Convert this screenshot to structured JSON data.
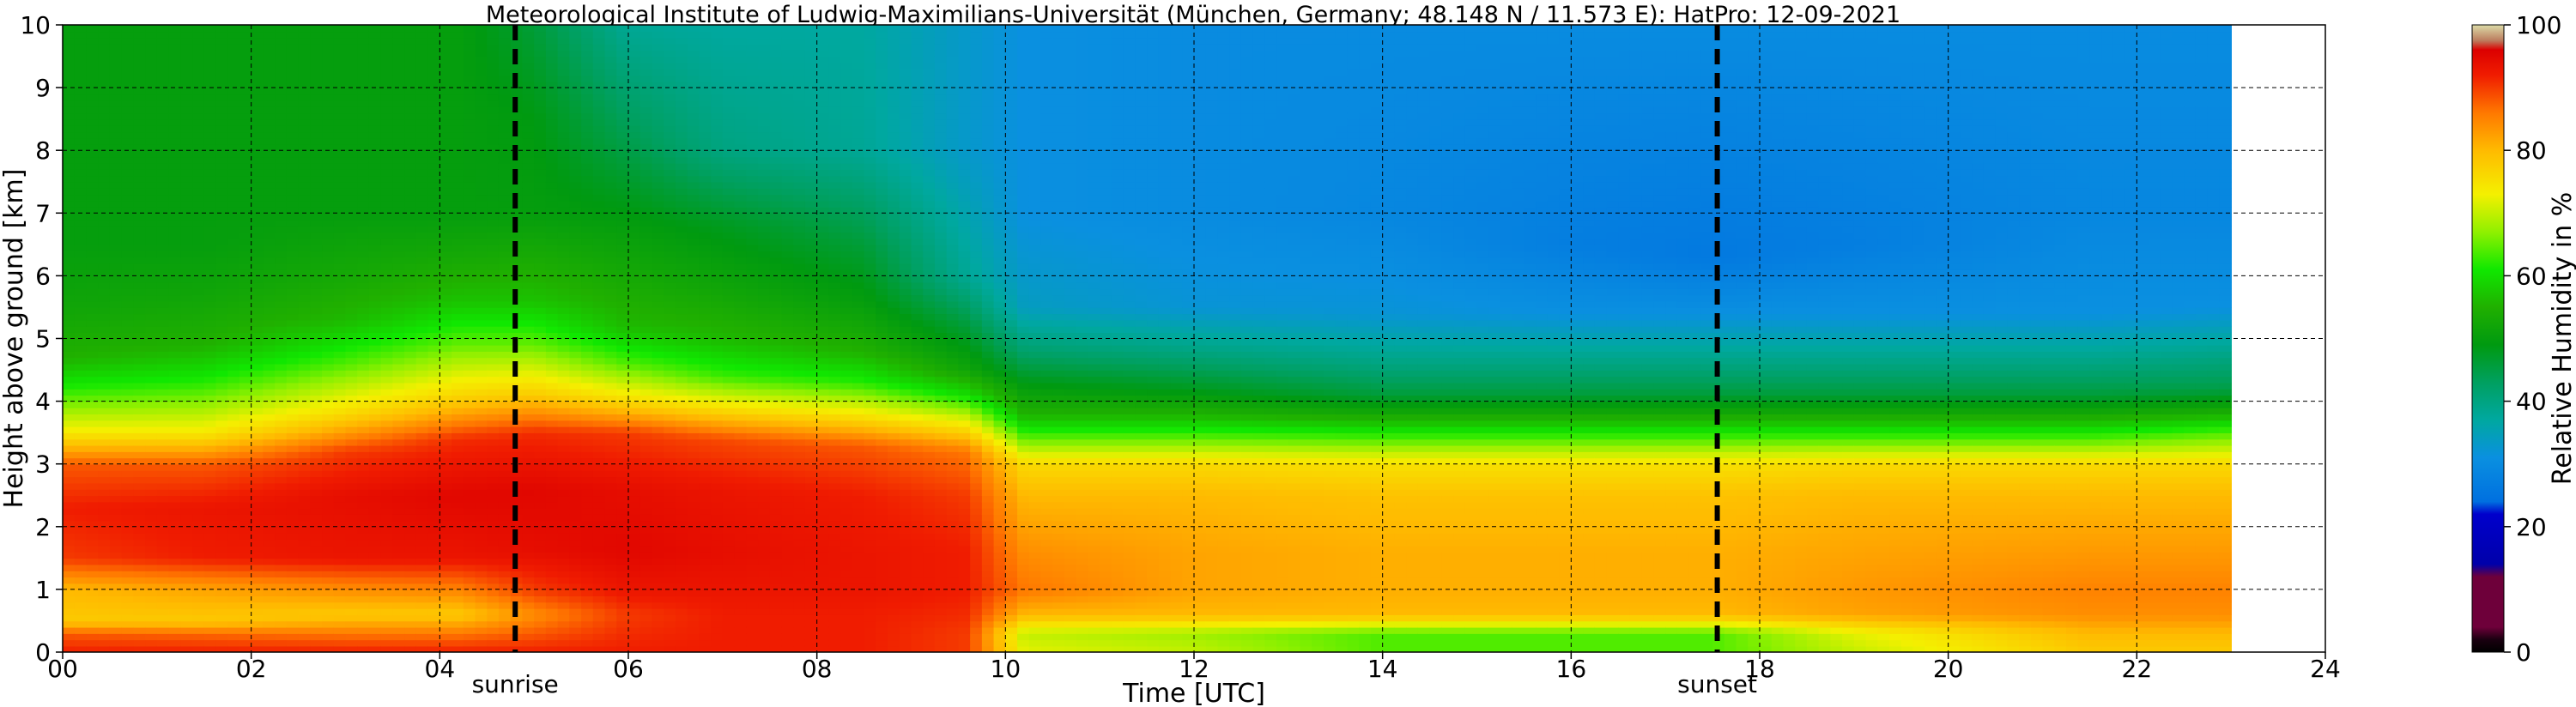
{
  "chart_data": {
    "type": "heatmap",
    "title": "Meteorological Institute of Ludwig-Maximilians-Universität (München, Germany; 48.148 N / 11.573 E):    HatPro: 12-09-2021",
    "xlabel": "Time [UTC]",
    "ylabel": "Height above ground [km]",
    "xlim": [
      0,
      24
    ],
    "ylim": [
      0,
      10
    ],
    "x_ticks": [
      0,
      2,
      4,
      6,
      8,
      10,
      12,
      14,
      16,
      18,
      20,
      22,
      24
    ],
    "x_tick_labels": [
      "00",
      "02",
      "04",
      "06",
      "08",
      "10",
      "12",
      "14",
      "16",
      "18",
      "20",
      "22",
      "24"
    ],
    "y_ticks": [
      0,
      1,
      2,
      3,
      4,
      5,
      6,
      7,
      8,
      9,
      10
    ],
    "y_tick_labels": [
      "0",
      "1",
      "2",
      "3",
      "4",
      "5",
      "6",
      "7",
      "8",
      "9",
      "10"
    ],
    "grid": true,
    "data_x_end": 23.0,
    "annotations": [
      {
        "label": "sunrise",
        "x": 4.8
      },
      {
        "label": "sunset",
        "x": 17.55
      }
    ],
    "colorbar": {
      "label": "Relative Humidity in %",
      "ticks": [
        0,
        20,
        40,
        60,
        80,
        100
      ],
      "tick_labels": [
        "0",
        "20",
        "40",
        "60",
        "80",
        "100"
      ],
      "stops": [
        {
          "value": 0,
          "color": "#000000"
        },
        {
          "value": 2,
          "color": "#1a0010"
        },
        {
          "value": 4,
          "color": "#6e003a"
        },
        {
          "value": 12,
          "color": "#6e003a"
        },
        {
          "value": 14,
          "color": "#0000aa"
        },
        {
          "value": 22,
          "color": "#0000cc"
        },
        {
          "value": 24,
          "color": "#0070e0"
        },
        {
          "value": 31,
          "color": "#0a90e0"
        },
        {
          "value": 37,
          "color": "#00a8a0"
        },
        {
          "value": 43,
          "color": "#00a060"
        },
        {
          "value": 49,
          "color": "#009a10"
        },
        {
          "value": 55,
          "color": "#20b000"
        },
        {
          "value": 61,
          "color": "#10e800"
        },
        {
          "value": 67,
          "color": "#90f000"
        },
        {
          "value": 73,
          "color": "#f4f000"
        },
        {
          "value": 80,
          "color": "#ffba00"
        },
        {
          "value": 86,
          "color": "#ff7800"
        },
        {
          "value": 92,
          "color": "#f01c00"
        },
        {
          "value": 96,
          "color": "#dc0000"
        },
        {
          "value": 97.5,
          "color": "#bc7c5e"
        },
        {
          "value": 100,
          "color": "#dcdca8"
        }
      ]
    },
    "rh_profiles": [
      {
        "x": 0.0,
        "h": [
          0,
          0.3,
          0.5,
          1.0,
          1.5,
          2.3,
          3.0,
          3.5,
          4.2,
          4.7,
          5.5,
          6.5,
          8.0,
          10.0
        ],
        "rh": [
          92,
          88,
          78,
          80,
          90,
          92,
          88,
          74,
          62,
          55,
          52,
          50,
          50,
          50
        ]
      },
      {
        "x": 1.5,
        "h": [
          0,
          0.3,
          0.5,
          1.0,
          1.5,
          2.3,
          3.0,
          3.5,
          4.3,
          4.9,
          5.7,
          6.5,
          8.0,
          10.0
        ],
        "rh": [
          92,
          87,
          78,
          82,
          92,
          93,
          88,
          74,
          62,
          55,
          52,
          50,
          50,
          50
        ]
      },
      {
        "x": 3.0,
        "h": [
          0,
          0.3,
          0.6,
          1.0,
          1.5,
          2.5,
          3.2,
          3.8,
          4.6,
          5.3,
          6.0,
          7.0,
          8.0,
          10.0
        ],
        "rh": [
          92,
          86,
          78,
          84,
          93,
          94,
          90,
          76,
          64,
          56,
          53,
          50,
          50,
          50
        ]
      },
      {
        "x": 4.2,
        "h": [
          0,
          0.3,
          0.6,
          1.0,
          1.5,
          2.5,
          3.4,
          4.0,
          4.9,
          5.6,
          6.3,
          7.0,
          8.5,
          10.0
        ],
        "rh": [
          92,
          86,
          78,
          85,
          93,
          95,
          91,
          78,
          65,
          57,
          53,
          50,
          50,
          50
        ]
      },
      {
        "x": 5.0,
        "h": [
          0,
          0.3,
          0.6,
          1.0,
          1.6,
          2.6,
          3.5,
          4.1,
          4.9,
          5.6,
          6.4,
          7.0,
          8.5,
          10.0
        ],
        "rh": [
          92,
          88,
          84,
          90,
          94,
          95,
          91,
          78,
          65,
          57,
          53,
          50,
          49,
          46
        ]
      },
      {
        "x": 6.0,
        "h": [
          0,
          0.3,
          0.6,
          1.0,
          1.6,
          2.6,
          3.5,
          4.0,
          4.6,
          5.2,
          6.0,
          6.8,
          8.0,
          10.0
        ],
        "rh": [
          92,
          91,
          90,
          93,
          95,
          94,
          90,
          76,
          64,
          56,
          53,
          50,
          45,
          38
        ]
      },
      {
        "x": 7.0,
        "h": [
          0,
          0.3,
          0.6,
          1.0,
          1.6,
          2.6,
          3.4,
          3.9,
          4.4,
          5.0,
          5.8,
          6.8,
          8.0,
          10.0
        ],
        "rh": [
          92,
          92,
          92,
          93,
          94,
          93,
          89,
          75,
          63,
          56,
          52,
          48,
          40,
          37
        ]
      },
      {
        "x": 8.5,
        "h": [
          0,
          0.3,
          0.6,
          1.0,
          1.6,
          2.5,
          3.3,
          3.8,
          4.3,
          4.8,
          5.6,
          6.5,
          8.0,
          10.0
        ],
        "rh": [
          92,
          92,
          92,
          93,
          93,
          92,
          88,
          74,
          62,
          55,
          50,
          46,
          38,
          37
        ]
      },
      {
        "x": 9.6,
        "h": [
          0,
          0.3,
          0.6,
          1.0,
          1.6,
          2.5,
          3.2,
          3.7,
          4.1,
          4.5,
          5.2,
          6.0,
          8.0,
          10.0
        ],
        "rh": [
          90,
          90,
          91,
          92,
          92,
          90,
          86,
          72,
          60,
          52,
          46,
          38,
          33,
          33
        ]
      },
      {
        "x": 10.2,
        "h": [
          0,
          0.3,
          0.6,
          1.0,
          1.6,
          2.5,
          3.0,
          3.4,
          3.8,
          4.2,
          4.8,
          5.5,
          7.0,
          10.0
        ],
        "rh": [
          72,
          70,
          80,
          86,
          84,
          80,
          76,
          65,
          55,
          50,
          42,
          34,
          31,
          31
        ]
      },
      {
        "x": 12.0,
        "h": [
          0,
          0.3,
          0.6,
          1.0,
          1.6,
          2.5,
          3.0,
          3.4,
          3.8,
          4.2,
          4.8,
          5.5,
          7.0,
          10.0
        ],
        "rh": [
          70,
          68,
          80,
          82,
          82,
          80,
          76,
          65,
          55,
          48,
          40,
          32,
          30,
          30
        ]
      },
      {
        "x": 14.0,
        "h": [
          0,
          0.3,
          0.6,
          1.0,
          1.6,
          2.5,
          3.0,
          3.4,
          3.8,
          4.1,
          4.6,
          5.4,
          7.0,
          10.0
        ],
        "rh": [
          64,
          64,
          80,
          81,
          81,
          79,
          75,
          64,
          53,
          46,
          40,
          32,
          29,
          30
        ]
      },
      {
        "x": 16.0,
        "h": [
          0,
          0.3,
          0.6,
          1.0,
          1.6,
          2.5,
          3.0,
          3.4,
          3.8,
          4.1,
          4.6,
          5.4,
          6.5,
          10.0
        ],
        "rh": [
          64,
          64,
          80,
          81,
          81,
          79,
          75,
          64,
          53,
          46,
          40,
          31,
          27,
          30
        ]
      },
      {
        "x": 17.5,
        "h": [
          0,
          0.3,
          0.6,
          1.0,
          1.6,
          2.5,
          3.0,
          3.4,
          3.8,
          4.1,
          4.6,
          5.4,
          6.3,
          10.0
        ],
        "rh": [
          64,
          64,
          80,
          81,
          81,
          79,
          75,
          64,
          53,
          46,
          40,
          31,
          26,
          30
        ]
      },
      {
        "x": 19.0,
        "h": [
          0,
          0.3,
          0.6,
          1.0,
          1.6,
          2.5,
          3.0,
          3.4,
          3.8,
          4.1,
          4.6,
          5.4,
          6.5,
          10.0
        ],
        "rh": [
          70,
          72,
          82,
          83,
          82,
          80,
          76,
          64,
          53,
          46,
          40,
          31,
          27,
          30
        ]
      },
      {
        "x": 21.5,
        "h": [
          0,
          0.3,
          0.6,
          1.0,
          1.6,
          2.5,
          3.0,
          3.4,
          3.8,
          4.1,
          4.6,
          5.4,
          7.0,
          10.0
        ],
        "rh": [
          78,
          80,
          84,
          85,
          83,
          80,
          76,
          64,
          53,
          46,
          40,
          31,
          29,
          30
        ]
      },
      {
        "x": 23.0,
        "h": [
          0,
          0.3,
          0.6,
          1.0,
          1.6,
          2.5,
          3.0,
          3.5,
          3.9,
          4.2,
          4.7,
          5.5,
          7.0,
          10.0
        ],
        "rh": [
          78,
          80,
          84,
          85,
          83,
          80,
          76,
          64,
          52,
          45,
          40,
          31,
          29,
          30
        ]
      }
    ]
  }
}
